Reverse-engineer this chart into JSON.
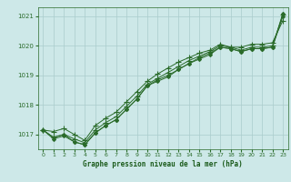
{
  "xlabel": "Graphe pression niveau de la mer (hPa)",
  "xlim": [
    -0.5,
    23.5
  ],
  "ylim": [
    1016.5,
    1021.3
  ],
  "yticks": [
    1017,
    1018,
    1019,
    1020,
    1021
  ],
  "xticks": [
    0,
    1,
    2,
    3,
    4,
    5,
    6,
    7,
    8,
    9,
    10,
    11,
    12,
    13,
    14,
    15,
    16,
    17,
    18,
    19,
    20,
    21,
    22,
    23
  ],
  "background_color": "#cde8e8",
  "grid_color": "#aacccc",
  "line_color": "#2a6b2a",
  "series": [
    [
      1017.15,
      1017.1,
      1017.2,
      1017.0,
      1016.8,
      1017.3,
      1017.55,
      1017.75,
      1018.1,
      1018.45,
      1018.8,
      1019.05,
      1019.25,
      1019.45,
      1019.6,
      1019.75,
      1019.85,
      1020.05,
      1019.95,
      1019.95,
      1020.05,
      1020.05,
      1020.1,
      1020.85
    ],
    [
      1017.15,
      1016.9,
      1017.0,
      1016.85,
      1016.72,
      1017.15,
      1017.4,
      1017.6,
      1017.95,
      1018.3,
      1018.7,
      1018.9,
      1019.1,
      1019.3,
      1019.5,
      1019.65,
      1019.8,
      1020.0,
      1019.95,
      1019.85,
      1019.95,
      1019.95,
      1020.0,
      1021.05
    ],
    [
      1017.15,
      1016.9,
      1017.0,
      1016.75,
      1016.65,
      1017.05,
      1017.3,
      1017.5,
      1017.85,
      1018.2,
      1018.65,
      1018.85,
      1019.0,
      1019.2,
      1019.4,
      1019.6,
      1019.75,
      1019.95,
      1019.9,
      1019.8,
      1019.9,
      1019.9,
      1019.95,
      1021.1
    ],
    [
      1017.15,
      1016.85,
      1016.95,
      1016.75,
      1016.65,
      1017.05,
      1017.3,
      1017.5,
      1017.85,
      1018.2,
      1018.65,
      1018.8,
      1018.95,
      1019.2,
      1019.4,
      1019.55,
      1019.7,
      1019.95,
      1019.9,
      1019.8,
      1019.9,
      1019.9,
      1019.95,
      1021.0
    ]
  ],
  "markers": [
    "+",
    "+",
    "D",
    "D"
  ],
  "markersizes": [
    4,
    4,
    2,
    2
  ]
}
